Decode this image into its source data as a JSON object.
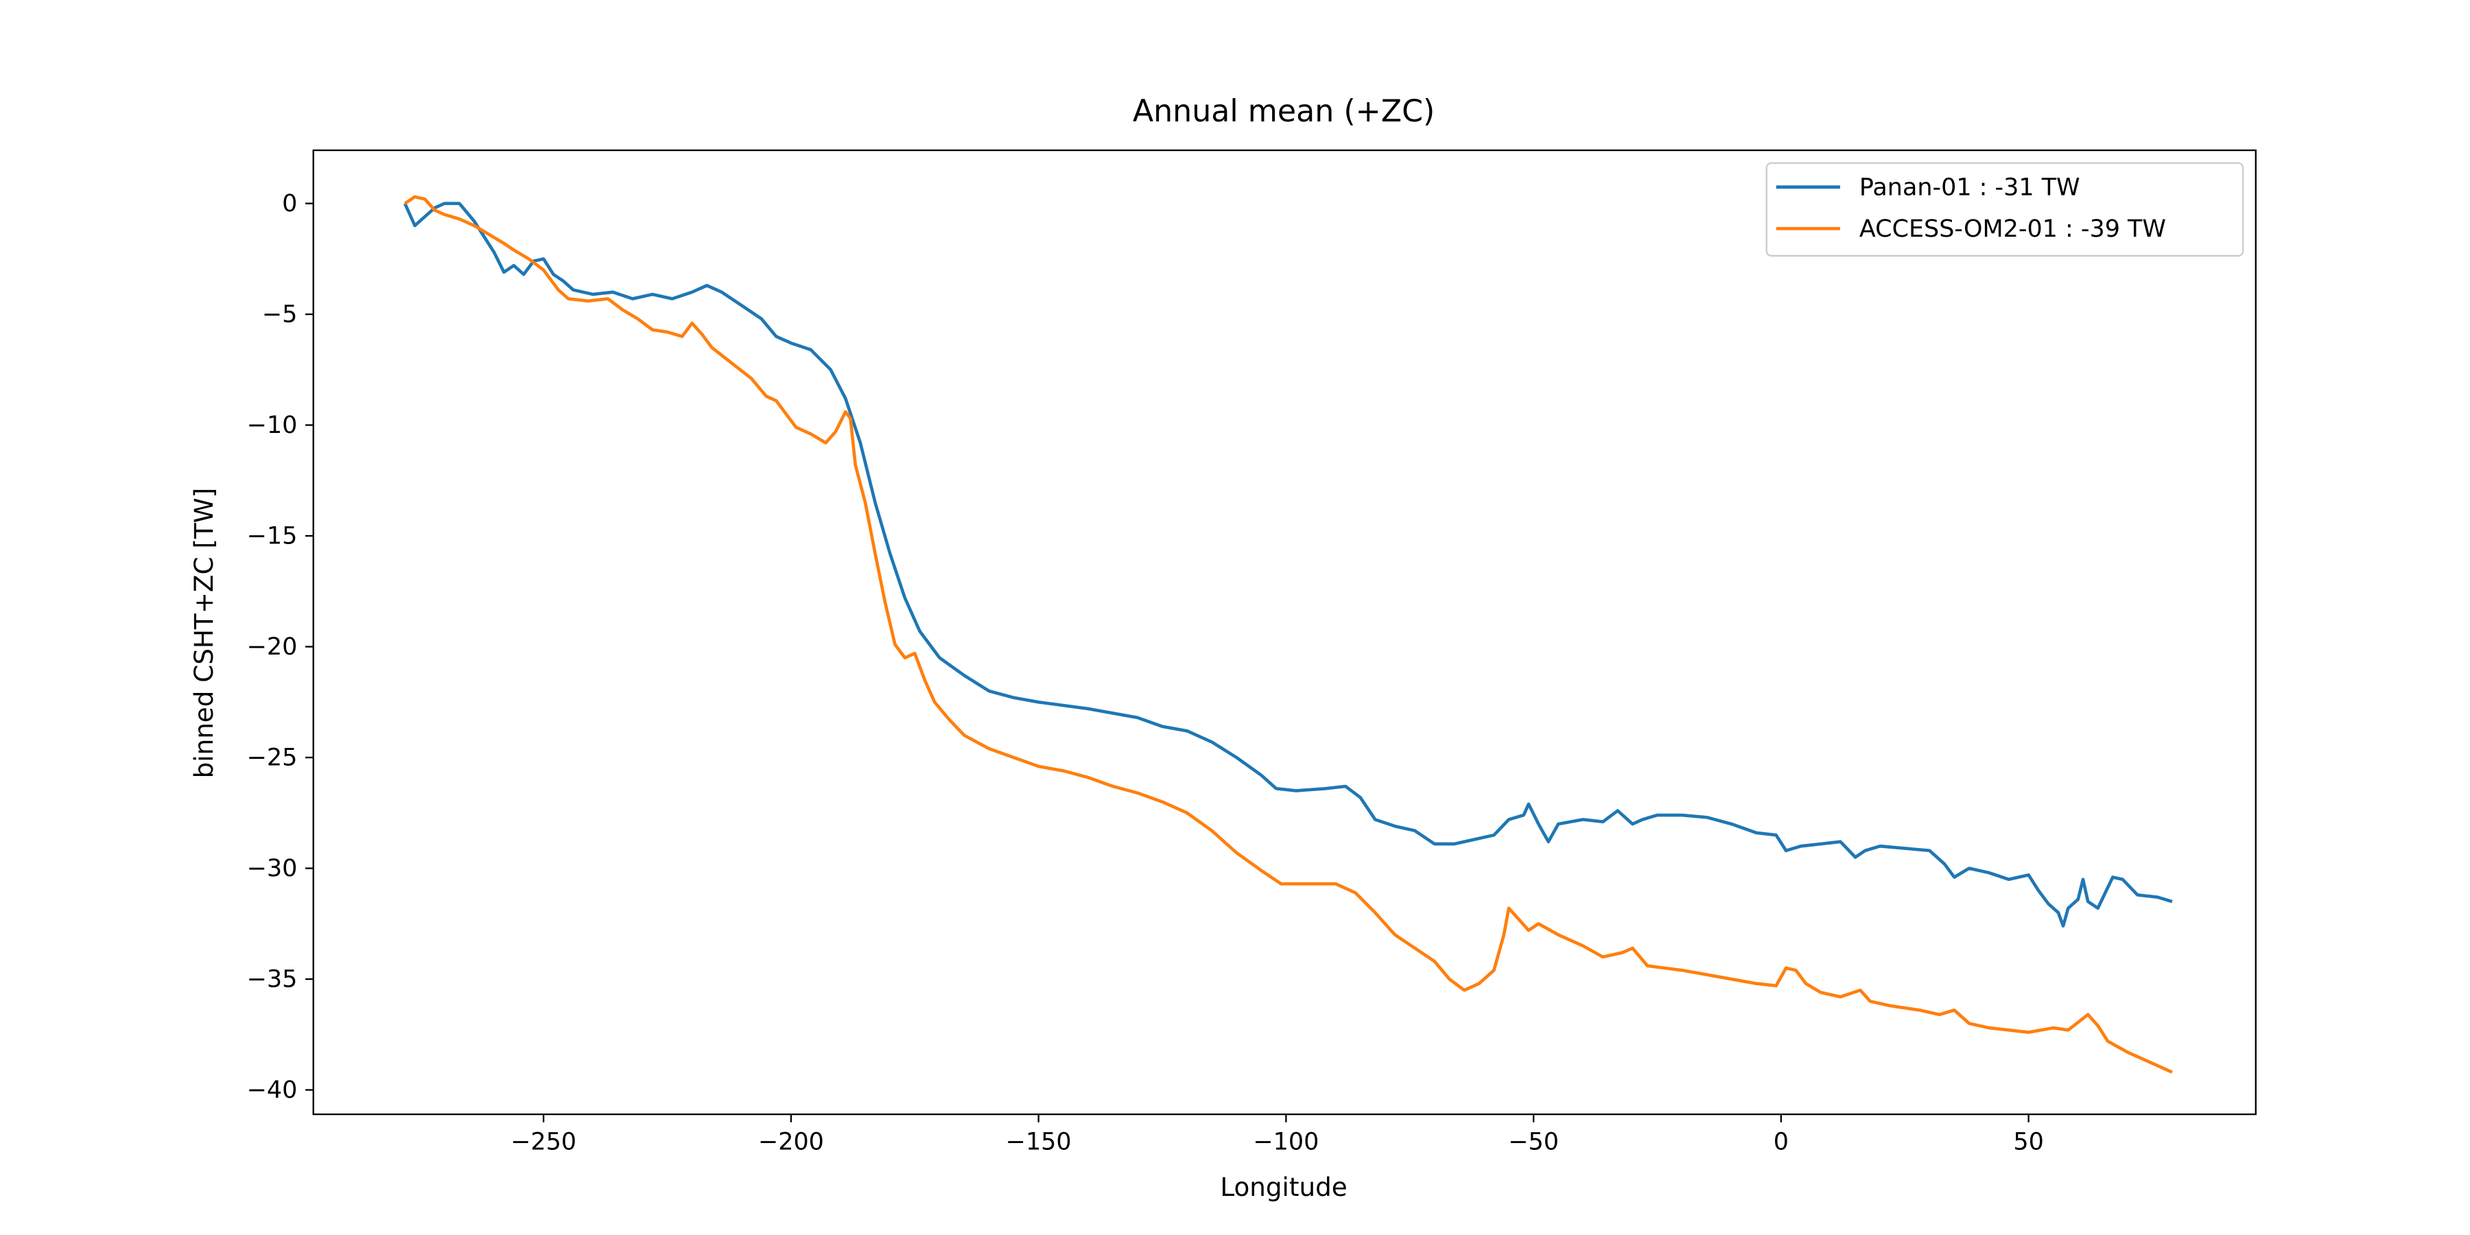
{
  "chart_data": {
    "type": "line",
    "title": "Annual mean (+ZC)",
    "xlabel": "Longitude",
    "ylabel": "binned CSHT+ZC [TW]",
    "xlim": [
      -296.5,
      95.9
    ],
    "ylim": [
      -41.1,
      2.4
    ],
    "xticks": [
      -250,
      -200,
      -150,
      -100,
      -50,
      0,
      50
    ],
    "yticks": [
      0,
      -5,
      -10,
      -15,
      -20,
      -25,
      -30,
      -35,
      -40
    ],
    "legend": "upper right",
    "grid": false,
    "series": [
      {
        "name": "Panan-01 : -31 TW",
        "color": "#1f77b4",
        "x": [
          -278,
          -276,
          -274,
          -272,
          -270,
          -267,
          -264,
          -262,
          -260,
          -258,
          -256,
          -254,
          -252,
          -250,
          -248,
          -246,
          -244,
          -240,
          -236,
          -232,
          -228,
          -224,
          -220,
          -217,
          -214,
          -210,
          -206,
          -203,
          -200,
          -196,
          -192,
          -189,
          -186,
          -183,
          -180,
          -177,
          -174,
          -170,
          -165,
          -160,
          -155,
          -150,
          -140,
          -130,
          -125,
          -120,
          -115,
          -110,
          -105,
          -102,
          -98,
          -92,
          -88,
          -85,
          -82,
          -78,
          -74,
          -70,
          -66,
          -62,
          -58,
          -55,
          -52,
          -51,
          -49,
          -47,
          -45,
          -40,
          -36,
          -33,
          -30,
          -28,
          -25,
          -20,
          -15,
          -10,
          -5,
          -1,
          1,
          4,
          8,
          12,
          15,
          17,
          20,
          25,
          30,
          33,
          35,
          38,
          42,
          46,
          50,
          52,
          54,
          56,
          57,
          58,
          60,
          61,
          62,
          64,
          67,
          69,
          72,
          76,
          79
        ],
        "values": [
          0,
          -1,
          -0.6,
          -0.2,
          0,
          0,
          -0.8,
          -1.5,
          -2.2,
          -3.1,
          -2.8,
          -3.2,
          -2.6,
          -2.5,
          -3.2,
          -3.5,
          -3.9,
          -4.1,
          -4.0,
          -4.3,
          -4.1,
          -4.3,
          -4.0,
          -3.7,
          -4.0,
          -4.6,
          -5.2,
          -6.0,
          -6.3,
          -6.6,
          -7.5,
          -8.8,
          -10.8,
          -13.5,
          -15.8,
          -17.8,
          -19.3,
          -20.5,
          -21.3,
          -22.0,
          -22.3,
          -22.5,
          -22.8,
          -23.2,
          -23.6,
          -23.8,
          -24.3,
          -25.0,
          -25.8,
          -26.4,
          -26.5,
          -26.4,
          -26.3,
          -26.8,
          -27.8,
          -28.1,
          -28.3,
          -28.9,
          -28.9,
          -28.7,
          -28.5,
          -27.8,
          -27.6,
          -27.1,
          -28.0,
          -28.8,
          -28.0,
          -27.8,
          -27.9,
          -27.4,
          -28.0,
          -27.8,
          -27.6,
          -27.6,
          -27.7,
          -28.0,
          -28.4,
          -28.5,
          -29.2,
          -29.0,
          -28.9,
          -28.8,
          -29.5,
          -29.2,
          -29.0,
          -29.1,
          -29.2,
          -29.8,
          -30.4,
          -30.0,
          -30.2,
          -30.5,
          -30.3,
          -31.0,
          -31.6,
          -32.0,
          -32.6,
          -31.8,
          -31.4,
          -30.5,
          -31.5,
          -31.8,
          -30.4,
          -30.5,
          -31.2,
          -31.3,
          -31.5
        ]
      },
      {
        "name": "ACCESS-OM2-01 : -39 TW",
        "color": "#ff7f0e",
        "x": [
          -278,
          -276,
          -274,
          -272,
          -270,
          -267,
          -264,
          -261,
          -258,
          -256,
          -253,
          -250,
          -247,
          -245,
          -241,
          -237,
          -234,
          -231,
          -228,
          -225,
          -222,
          -220,
          -218,
          -216,
          -212,
          -208,
          -205,
          -203,
          -201,
          -199,
          -196,
          -193,
          -191,
          -189,
          -188,
          -187,
          -185,
          -183,
          -181,
          -179,
          -177,
          -175,
          -173,
          -171,
          -168,
          -165,
          -160,
          -155,
          -150,
          -145,
          -140,
          -135,
          -130,
          -125,
          -120,
          -115,
          -110,
          -105,
          -101,
          -96,
          -90,
          -86,
          -82,
          -78,
          -74,
          -70,
          -67,
          -64,
          -61,
          -58,
          -56,
          -55,
          -53,
          -51,
          -49,
          -45,
          -40,
          -36,
          -32,
          -30,
          -27,
          -20,
          -15,
          -10,
          -5,
          -1,
          1,
          3,
          5,
          8,
          12,
          16,
          18,
          22,
          28,
          32,
          35,
          38,
          42,
          46,
          50,
          55,
          58,
          62,
          64,
          66,
          70,
          74,
          77,
          79
        ],
        "values": [
          0,
          0.3,
          0.2,
          -0.3,
          -0.5,
          -0.7,
          -1.0,
          -1.4,
          -1.8,
          -2.1,
          -2.5,
          -3.0,
          -3.9,
          -4.3,
          -4.4,
          -4.3,
          -4.8,
          -5.2,
          -5.7,
          -5.8,
          -6.0,
          -5.4,
          -5.9,
          -6.5,
          -7.2,
          -7.9,
          -8.7,
          -8.9,
          -9.5,
          -10.1,
          -10.4,
          -10.8,
          -10.3,
          -9.4,
          -9.7,
          -11.8,
          -13.5,
          -15.8,
          -18.0,
          -19.9,
          -20.5,
          -20.3,
          -21.5,
          -22.5,
          -23.3,
          -24.0,
          -24.6,
          -25.0,
          -25.4,
          -25.6,
          -25.9,
          -26.3,
          -26.6,
          -27.0,
          -27.5,
          -28.3,
          -29.3,
          -30.1,
          -30.7,
          -30.7,
          -30.7,
          -31.1,
          -32.0,
          -33.0,
          -33.6,
          -34.2,
          -35.0,
          -35.5,
          -35.2,
          -34.6,
          -33.0,
          -31.8,
          -32.3,
          -32.8,
          -32.5,
          -33.0,
          -33.5,
          -34.0,
          -33.8,
          -33.6,
          -34.4,
          -34.6,
          -34.8,
          -35.0,
          -35.2,
          -35.3,
          -34.5,
          -34.6,
          -35.2,
          -35.6,
          -35.8,
          -35.5,
          -36.0,
          -36.2,
          -36.4,
          -36.6,
          -36.4,
          -37.0,
          -37.2,
          -37.3,
          -37.4,
          -37.2,
          -37.3,
          -36.6,
          -37.1,
          -37.8,
          -38.3,
          -38.7,
          -39.0,
          -39.2
        ]
      }
    ]
  }
}
